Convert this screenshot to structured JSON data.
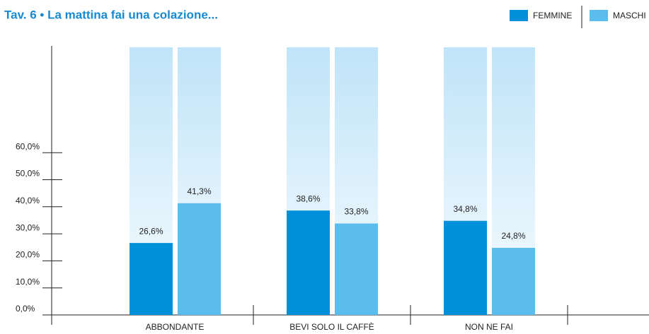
{
  "chart_data": {
    "type": "bar",
    "title": "Tav. 6 • La mattina fai una colazione...",
    "categories": [
      "ABBONDANTE",
      "BEVI SOLO IL CAFFÈ",
      "NON NE FAI"
    ],
    "series": [
      {
        "name": "FEMMINE",
        "color": "#0090d9",
        "values": [
          26.6,
          38.6,
          34.8
        ],
        "value_labels": [
          "26,6%",
          "38,6%",
          "34,8%"
        ]
      },
      {
        "name": "MASCHI",
        "color": "#5bbcee",
        "values": [
          41.3,
          33.8,
          24.8
        ],
        "value_labels": [
          "41,3%",
          "33,8%",
          "24,8%"
        ]
      }
    ],
    "ylim": [
      0,
      100
    ],
    "yticks": [
      {
        "value": 0,
        "label": "0,0%"
      },
      {
        "value": 10,
        "label": "10,0%"
      },
      {
        "value": 20,
        "label": "20,0%"
      },
      {
        "value": 30,
        "label": "30,0%"
      },
      {
        "value": 40,
        "label": "40,0%"
      },
      {
        "value": 50,
        "label": "50,0%"
      },
      {
        "value": 60,
        "label": "60,0%"
      }
    ],
    "legend": "top-right"
  }
}
